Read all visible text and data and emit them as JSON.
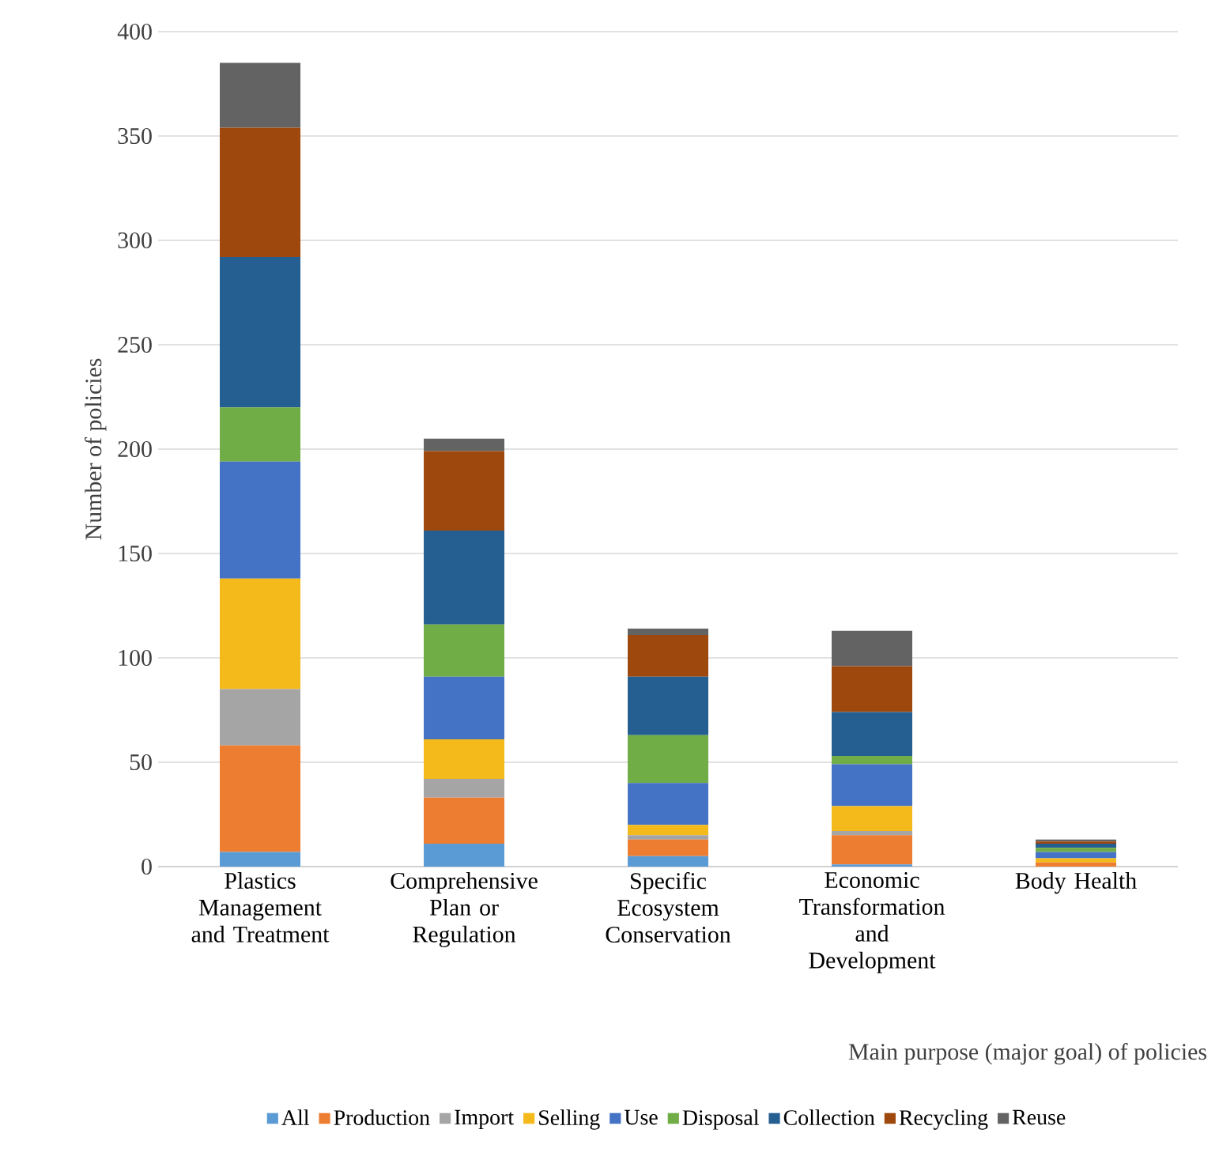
{
  "chart_data": {
    "type": "bar",
    "stacked": true,
    "xlabel": "Main purpose (major goal) of policies",
    "ylabel": "Number of policies",
    "categories": [
      "Plastics Management and Treatment",
      "Comprehensive Plan or Regulation",
      "Specific Ecosystem Conservation",
      "Economic Transformation and Development",
      "Body Health"
    ],
    "series": [
      {
        "name": "All",
        "color": "#5b9bd5",
        "values": [
          7,
          11,
          5,
          1,
          0
        ]
      },
      {
        "name": "Production",
        "color": "#ed7d31",
        "values": [
          51,
          22,
          8,
          14,
          2
        ]
      },
      {
        "name": "Import",
        "color": "#a5a5a5",
        "values": [
          27,
          9,
          2,
          2,
          null
        ]
      },
      {
        "name": "Selling",
        "color": "#f4b91a",
        "values": [
          53,
          19,
          5,
          12,
          2
        ]
      },
      {
        "name": "Use",
        "color": "#4472c4",
        "values": [
          56,
          30,
          20,
          20,
          3
        ]
      },
      {
        "name": "Disposal",
        "color": "#70ad47",
        "values": [
          26,
          25,
          23,
          4,
          2
        ]
      },
      {
        "name": "Collection",
        "color": "#255e91",
        "values": [
          72,
          45,
          28,
          21,
          2
        ]
      },
      {
        "name": "Recycling",
        "color": "#9e480e",
        "values": [
          62,
          38,
          20,
          22,
          1
        ]
      },
      {
        "name": "Reuse",
        "color": "#636363",
        "values": [
          31,
          6,
          3,
          17,
          1
        ]
      }
    ],
    "ylim": [
      0,
      400
    ],
    "yticks": [
      0,
      50,
      100,
      150,
      200,
      250,
      300,
      350,
      400
    ],
    "grid": "y",
    "legend": "bottom"
  }
}
